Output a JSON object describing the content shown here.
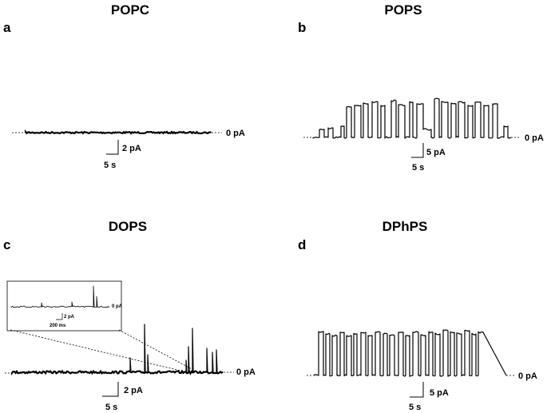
{
  "panels": [
    {
      "letter": "a",
      "title": "POPC",
      "baseline_label": "0 pA",
      "current_scale": "2 pA",
      "time_scale": "5 s",
      "trace_type": "flat"
    },
    {
      "letter": "b",
      "title": "POPS",
      "baseline_label": "0 pA",
      "current_scale": "5 pA",
      "time_scale": "5 s",
      "trace_type": "channel-openings"
    },
    {
      "letter": "c",
      "title": "DOPS",
      "baseline_label": "0 pA",
      "current_scale": "2 pA",
      "time_scale": "5 s",
      "trace_type": "spikes",
      "inset": {
        "baseline_label": "0 pA",
        "current_scale": "2 pA",
        "time_scale": "200 ms"
      }
    },
    {
      "letter": "d",
      "title": "DPhPS",
      "baseline_label": "0 pA",
      "current_scale": "5 pA",
      "time_scale": "5 s",
      "trace_type": "channel-openings"
    }
  ]
}
